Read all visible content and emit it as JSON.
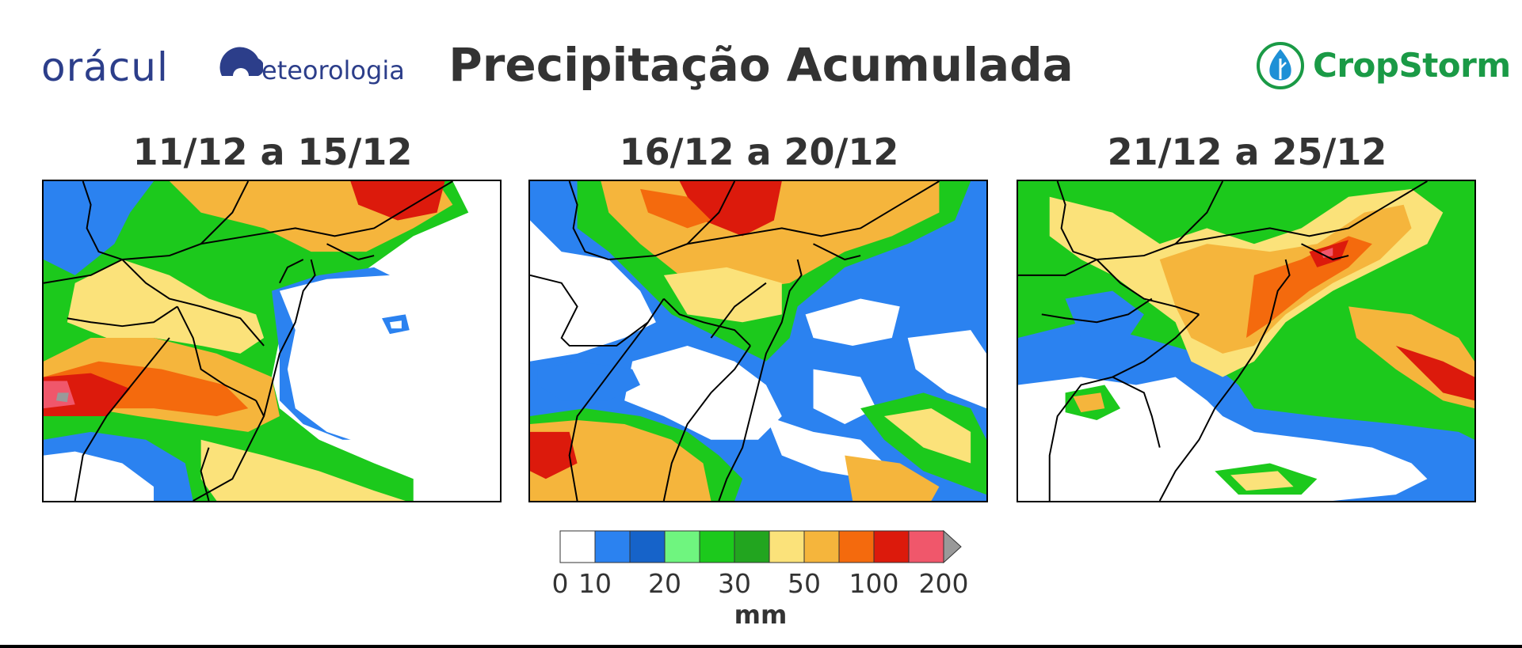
{
  "header": {
    "title": "Precipitação Acumulada",
    "logo_left_part1": "orácul",
    "logo_left_part2": "eteorologia",
    "logo_right": "CropStorm"
  },
  "panels": [
    {
      "period": "11/12 a 15/12"
    },
    {
      "period": "16/12 a 20/12"
    },
    {
      "period": "21/12 a 25/12"
    }
  ],
  "colorbar": {
    "unit": "mm",
    "tick_labels": [
      "0",
      "10",
      "20",
      "30",
      "50",
      "100",
      "200"
    ],
    "colors": [
      "#ffffff",
      "#2b82f0",
      "#1663c9",
      "#6ff57f",
      "#1cc91c",
      "#22a51f",
      "#fbe27a",
      "#f5b53c",
      "#f46a0d",
      "#dc1a0c",
      "#f0576b",
      "#999999"
    ]
  },
  "chart_data": {
    "type": "heatmap",
    "title": "Precipitação Acumulada",
    "subplot_titles": [
      "11/12 a 15/12",
      "16/12 a 20/12",
      "21/12 a 25/12"
    ],
    "unit": "mm",
    "levels": [
      0,
      10,
      20,
      30,
      50,
      100,
      200
    ],
    "legend": "colorbar-bottom"
  }
}
